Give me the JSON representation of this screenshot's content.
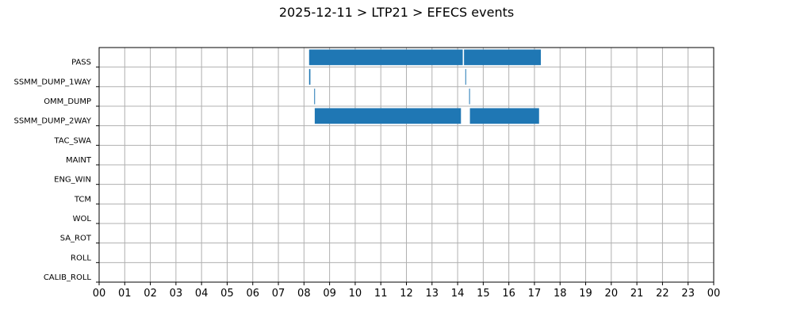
{
  "title": "2025-12-11 > LTP21 > EFECS events",
  "chart_data": {
    "type": "bar",
    "orientation": "horizontal-timeline",
    "title": "2025-12-11 > LTP21 > EFECS events",
    "xlabel": "",
    "ylabel": "",
    "x_unit": "hour",
    "xlim": [
      0,
      24
    ],
    "x_ticks": [
      0,
      1,
      2,
      3,
      4,
      5,
      6,
      7,
      8,
      9,
      10,
      11,
      12,
      13,
      14,
      15,
      16,
      17,
      18,
      19,
      20,
      21,
      22,
      23,
      24
    ],
    "x_tick_labels": [
      "00",
      "01",
      "02",
      "03",
      "04",
      "05",
      "06",
      "07",
      "08",
      "09",
      "10",
      "11",
      "12",
      "13",
      "14",
      "15",
      "16",
      "17",
      "18",
      "19",
      "20",
      "21",
      "22",
      "23",
      "00"
    ],
    "grid": true,
    "bar_color": "#1f77b4",
    "categories": [
      "PASS",
      "SSMM_DUMP_1WAY",
      "OMM_DUMP",
      "SSMM_DUMP_2WAY",
      "TAC_SWA",
      "MAINT",
      "ENG_WIN",
      "TCM",
      "WOL",
      "SA_ROT",
      "ROLL",
      "CALIB_ROLL"
    ],
    "events": [
      {
        "category": "PASS",
        "start": 8.2,
        "end": 14.2
      },
      {
        "category": "PASS",
        "start": 14.25,
        "end": 17.25
      },
      {
        "category": "SSMM_DUMP_1WAY",
        "start": 8.2,
        "end": 8.25
      },
      {
        "category": "SSMM_DUMP_1WAY",
        "start": 14.3,
        "end": 14.33
      },
      {
        "category": "OMM_DUMP",
        "start": 8.4,
        "end": 8.43
      },
      {
        "category": "OMM_DUMP",
        "start": 14.45,
        "end": 14.48
      },
      {
        "category": "SSMM_DUMP_2WAY",
        "start": 8.42,
        "end": 14.13
      },
      {
        "category": "SSMM_DUMP_2WAY",
        "start": 14.48,
        "end": 17.18
      }
    ]
  }
}
